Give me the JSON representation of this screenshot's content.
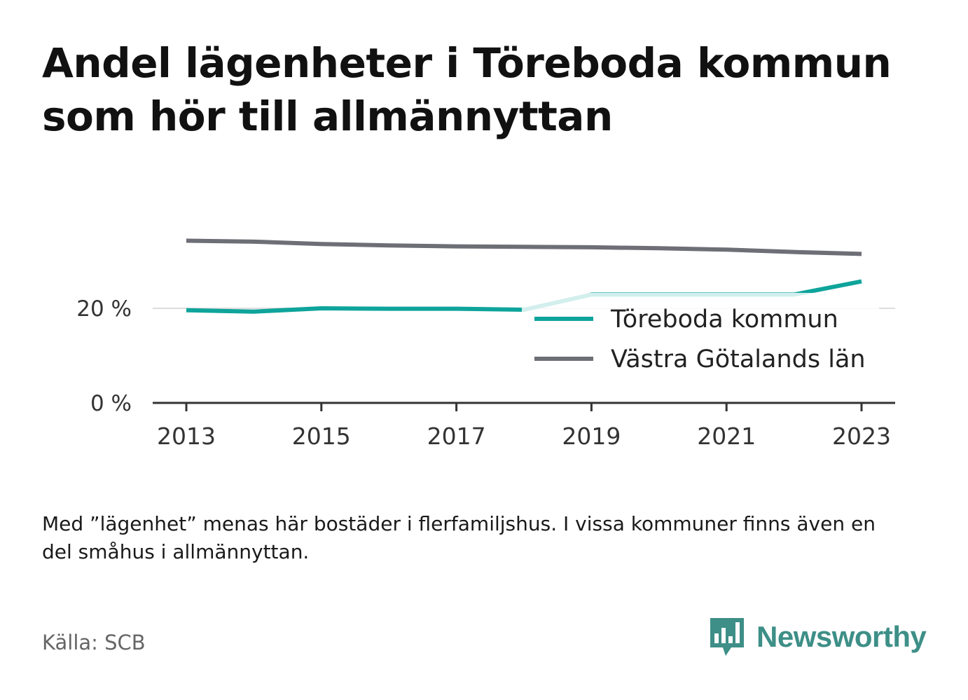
{
  "title": "Andel lägenheter i Töreboda kommun som hör till allmännyttan",
  "note": "Med ”lägenhet” menas här bostäder i flerfamiljshus. I vissa kommuner finns även en del småhus i allmännyttan.",
  "source": "Källa: SCB",
  "brand": {
    "name": "Newsworthy",
    "icon": "bar-chart-speech-bubble-icon"
  },
  "colors": {
    "series_1": "#0ea49b",
    "series_2": "#6e6e77",
    "axis": "#333333",
    "grid": "#dddddd"
  },
  "chart_data": {
    "type": "line",
    "x": [
      2013,
      2014,
      2015,
      2016,
      2017,
      2018,
      2019,
      2020,
      2021,
      2022,
      2023
    ],
    "x_ticks": [
      "2013",
      "2015",
      "2017",
      "2019",
      "2021",
      "2023"
    ],
    "y_ticks": [
      "0 %",
      "20 %"
    ],
    "ylim": [
      0,
      36
    ],
    "grid": true,
    "legend_position": "right",
    "series": [
      {
        "name": "Töreboda kommun",
        "color": "#0ea49b",
        "values": [
          19.6,
          19.3,
          20.0,
          19.9,
          19.9,
          19.7,
          22.9,
          22.9,
          22.9,
          22.9,
          25.7
        ]
      },
      {
        "name": "Västra Götalands län",
        "color": "#6e6e77",
        "values": [
          34.3,
          34.1,
          33.6,
          33.3,
          33.1,
          33.0,
          32.9,
          32.7,
          32.4,
          31.9,
          31.5
        ]
      }
    ]
  }
}
